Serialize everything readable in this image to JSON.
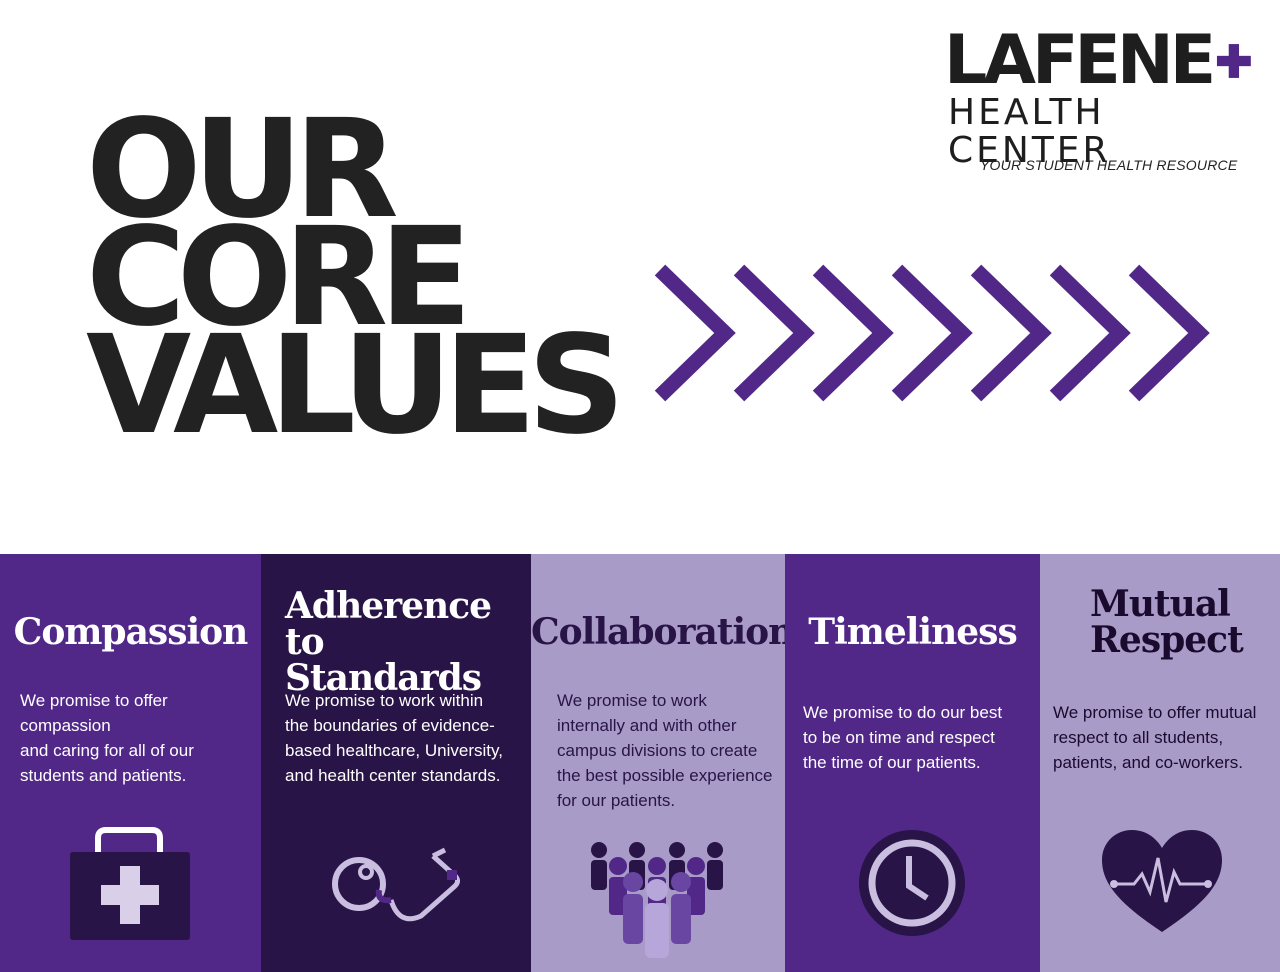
{
  "hero": {
    "line1": "OUR",
    "line2": "CORE",
    "line3": "VALUES"
  },
  "logo": {
    "name": "LAFENE",
    "subtitle": "HEALTH CENTER",
    "tagline": "YOUR STUDENT HEALTH RESOURCE",
    "plus_icon": "plus-icon"
  },
  "colors": {
    "purple": "#512888",
    "dark_purple": "#281446",
    "lavender": "#a99bc7",
    "text_dark": "#222222"
  },
  "values": [
    {
      "title": "Compassion",
      "text": "We promise to offer\ncompassion\nand caring for all of our\nstudents and patients.",
      "icon": "first-aid-kit-icon"
    },
    {
      "title": "Adherence\nto Standards",
      "text": "We promise to work within\nthe boundaries of evidence-\nbased healthcare, University,\nand health center standards.",
      "icon": "stethoscope-icon"
    },
    {
      "title": "Collaboration",
      "text": "We promise to work\ninternally and with other\ncampus divisions to create\nthe best possible experience\nfor our patients.",
      "icon": "group-of-people-icon"
    },
    {
      "title": "Timeliness",
      "text": "We promise to do our best\nto be on time and respect\nthe time of our patients.",
      "icon": "clock-icon"
    },
    {
      "title": "Mutual\nRespect",
      "text": "We promise to offer mutual\nrespect to all students,\npatients, and co-workers.",
      "icon": "heartbeat-heart-icon"
    }
  ]
}
